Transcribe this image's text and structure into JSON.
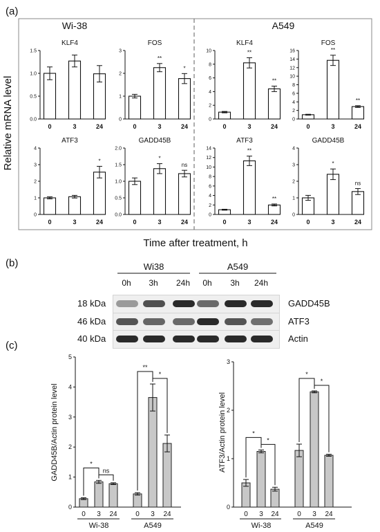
{
  "panel_labels": {
    "a": "(a)",
    "b": "(b)",
    "c": "(c)"
  },
  "panel_a": {
    "group_titles": [
      "Wi-38",
      "A549"
    ],
    "ylabel": "Relative mRNA level",
    "xlabel": "Time after treatment, h"
  },
  "panel_b": {
    "groups": [
      "Wi38",
      "A549"
    ],
    "lanes": [
      "0h",
      "3h",
      "24h",
      "0h",
      "3h",
      "24h"
    ],
    "rows": [
      {
        "mw": "18 kDa",
        "protein": "GADD45B"
      },
      {
        "mw": "46 kDa",
        "protein": "ATF3"
      },
      {
        "mw": "40 kDa",
        "protein": "Actin"
      }
    ]
  },
  "chart_data": [
    {
      "type": "bar",
      "title": "KLF4",
      "categories": [
        "0",
        "3",
        "24"
      ],
      "values": [
        1.0,
        1.27,
        0.99
      ],
      "errors": [
        0.14,
        0.13,
        0.18
      ],
      "sig": [
        "",
        "",
        ""
      ],
      "ylim": [
        0,
        1.5
      ],
      "yticks": [
        "0.0",
        "0.5",
        "1.0",
        "1.5"
      ]
    },
    {
      "type": "bar",
      "title": "FOS",
      "categories": [
        "0",
        "3",
        "24"
      ],
      "values": [
        1.0,
        2.25,
        1.77
      ],
      "errors": [
        0.08,
        0.18,
        0.22
      ],
      "sig": [
        "",
        "**",
        "*"
      ],
      "ylim": [
        0,
        3
      ],
      "yticks": [
        "0",
        "1",
        "2",
        "3"
      ]
    },
    {
      "type": "bar",
      "title": "ATF3",
      "categories": [
        "0",
        "3",
        "24"
      ],
      "values": [
        1.0,
        1.07,
        2.55
      ],
      "errors": [
        0.06,
        0.08,
        0.35
      ],
      "sig": [
        "",
        "",
        "*"
      ],
      "ylim": [
        0,
        4
      ],
      "yticks": [
        "0",
        "1",
        "2",
        "3",
        "4"
      ]
    },
    {
      "type": "bar",
      "title": "GADD45B",
      "categories": [
        "0",
        "3",
        "24"
      ],
      "values": [
        1.0,
        1.38,
        1.23
      ],
      "errors": [
        0.1,
        0.15,
        0.1
      ],
      "sig": [
        "",
        "*",
        "ns"
      ],
      "ylim": [
        0,
        2
      ],
      "yticks": [
        "0.0",
        "0.5",
        "1.0",
        "1.5",
        "2.0"
      ]
    },
    {
      "type": "bar",
      "title": "KLF4",
      "categories": [
        "0",
        "3",
        "24"
      ],
      "values": [
        1.0,
        8.2,
        4.4
      ],
      "errors": [
        0.1,
        0.75,
        0.4
      ],
      "sig": [
        "",
        "**",
        "**"
      ],
      "ylim": [
        0,
        10
      ],
      "yticks": [
        "0",
        "2",
        "4",
        "6",
        "8",
        "10"
      ]
    },
    {
      "type": "bar",
      "title": "FOS",
      "categories": [
        "0",
        "3",
        "24"
      ],
      "values": [
        1.0,
        13.7,
        2.9
      ],
      "errors": [
        0.1,
        1.2,
        0.2
      ],
      "sig": [
        "",
        "**",
        "**"
      ],
      "ylim": [
        0,
        16
      ],
      "yticks": [
        "0",
        "2",
        "4",
        "6",
        "8",
        "10",
        "12",
        "14",
        "16"
      ]
    },
    {
      "type": "bar",
      "title": "ATF3",
      "categories": [
        "0",
        "3",
        "24"
      ],
      "values": [
        1.0,
        11.3,
        2.0
      ],
      "errors": [
        0.1,
        1.0,
        0.2
      ],
      "sig": [
        "",
        "**",
        "**"
      ],
      "ylim": [
        0,
        14
      ],
      "yticks": [
        "0",
        "2",
        "4",
        "6",
        "8",
        "10",
        "12",
        "14"
      ]
    },
    {
      "type": "bar",
      "title": "GADD45B",
      "categories": [
        "0",
        "3",
        "24"
      ],
      "values": [
        1.0,
        2.42,
        1.38
      ],
      "errors": [
        0.15,
        0.32,
        0.18
      ],
      "sig": [
        "",
        "*",
        "ns"
      ],
      "ylim": [
        0,
        4
      ],
      "yticks": [
        "0",
        "1",
        "2",
        "3",
        "4"
      ]
    },
    {
      "type": "bar",
      "ylabel": "GADD45B/Actin protein level",
      "groups": [
        "Wi-38",
        "A549"
      ],
      "categories": [
        "0",
        "3",
        "24",
        "0",
        "3",
        "24"
      ],
      "values": [
        0.28,
        0.84,
        0.78,
        0.44,
        3.65,
        2.12
      ],
      "errors": [
        0.03,
        0.05,
        0.03,
        0.04,
        0.45,
        0.28
      ],
      "ylim": [
        0,
        5
      ],
      "yticks": [
        "0",
        "1",
        "2",
        "3",
        "4",
        "5"
      ],
      "comparisons": [
        {
          "from": 0,
          "to": 1,
          "label": "*"
        },
        {
          "from": 1,
          "to": 2,
          "label": "ns"
        },
        {
          "from": 3,
          "to": 4,
          "label": "**"
        },
        {
          "from": 4,
          "to": 5,
          "label": "*"
        }
      ]
    },
    {
      "type": "bar",
      "ylabel": "ATF3/Actin protein level",
      "groups": [
        "Wi-38",
        "A549"
      ],
      "categories": [
        "0",
        "3",
        "24",
        "0",
        "3",
        "24"
      ],
      "values": [
        0.5,
        1.15,
        0.37,
        1.17,
        2.38,
        1.07
      ],
      "errors": [
        0.07,
        0.03,
        0.04,
        0.13,
        0.02,
        0.02
      ],
      "ylim": [
        0,
        3
      ],
      "yticks": [
        "0",
        "1",
        "2",
        "3"
      ],
      "comparisons": [
        {
          "from": 0,
          "to": 1,
          "label": "*"
        },
        {
          "from": 1,
          "to": 2,
          "label": "*"
        },
        {
          "from": 3,
          "to": 4,
          "label": "*"
        },
        {
          "from": 4,
          "to": 5,
          "label": "*"
        }
      ]
    }
  ]
}
